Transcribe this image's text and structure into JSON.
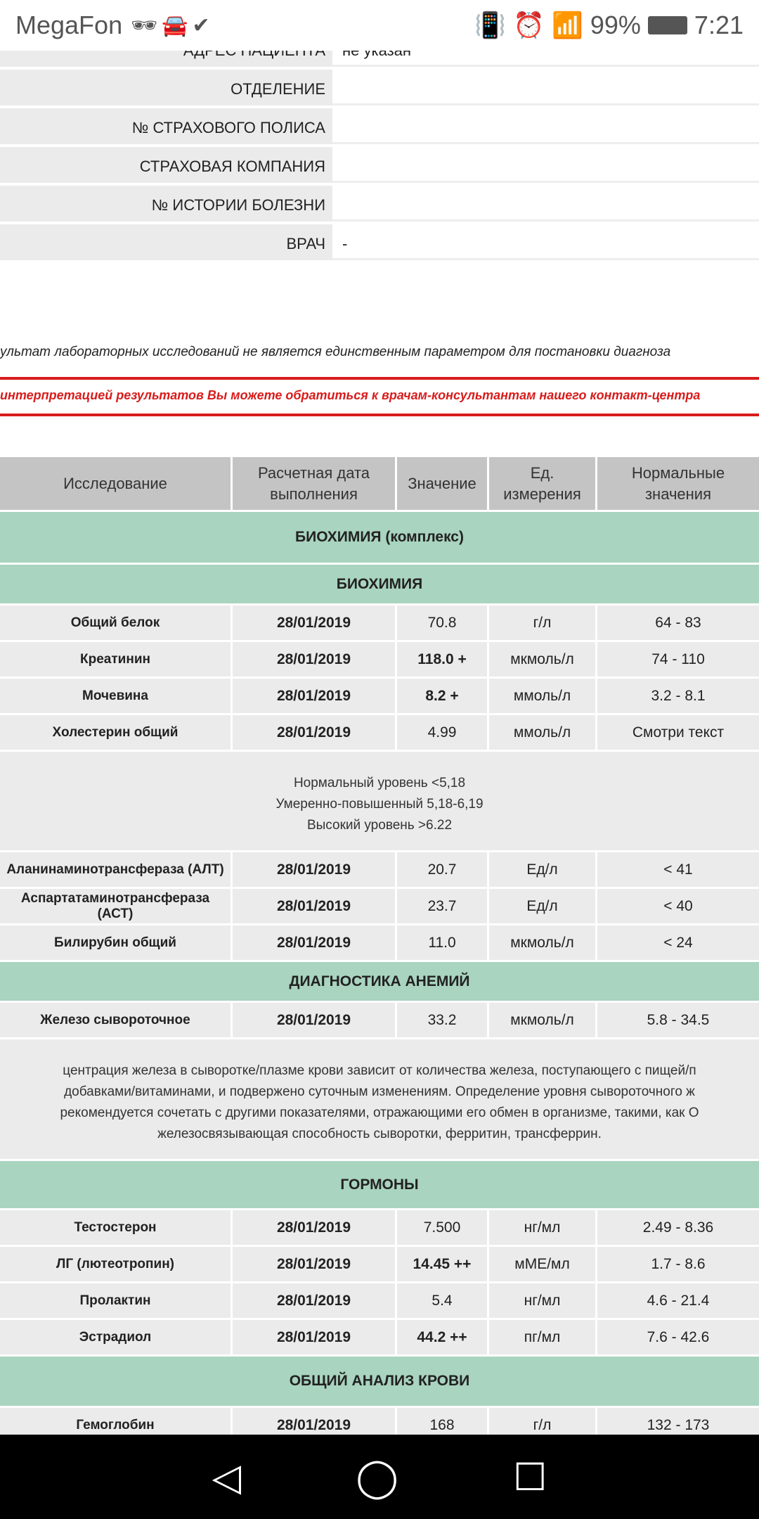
{
  "status_bar": {
    "carrier": "MegaFon",
    "left_icons": [
      "incognito-icon",
      "car-icon",
      "download-done-icon"
    ],
    "right_icons": [
      "vibrate-icon",
      "alarm-icon",
      "wifi-icon",
      "signal-icon"
    ],
    "battery": "99%",
    "time": "7:21"
  },
  "patient_info": [
    {
      "label": "АДРЕС ПАЦИЕНТА",
      "value": "не указан"
    },
    {
      "label": "ОТДЕЛЕНИЕ",
      "value": ""
    },
    {
      "label": "№ СТРАХОВОГО ПОЛИСА",
      "value": ""
    },
    {
      "label": "СТРАХОВАЯ КОМПАНИЯ",
      "value": ""
    },
    {
      "label": "№ ИСТОРИИ БОЛЕЗНИ",
      "value": ""
    },
    {
      "label": "ВРАЧ",
      "value": "-"
    }
  ],
  "disclaimer": "ультат лабораторных исследований не является единственным параметром для постановки диагноза",
  "contact_notice": "интерпретацией результатов Вы можете обратиться к врачам-консультантам нашего контакт-центра",
  "colors": {
    "header": "#c4c4c4",
    "section": "#a9d4bf",
    "row": "#ebebeb",
    "accent_red": "#d81c1c"
  },
  "table": {
    "headers": [
      "Исследование",
      "Расчетная дата выполнения",
      "Значение",
      "Ед. измерения",
      "Нормальные значения"
    ],
    "sections": {
      "biochem_complex": "БИОХИМИЯ (комплекс)",
      "biochem": "БИОХИМИЯ",
      "anemia": "ДИАГНОСТИКА АНЕМИЙ",
      "hormones": "ГОРМОНЫ",
      "cbc": "ОБЩИЙ АНАЛИЗ КРОВИ"
    },
    "biochem_rows": [
      {
        "name": "Общий белок",
        "date": "28/01/2019",
        "value": "70.8",
        "unit": "г/л",
        "norm": "64 - 83",
        "flag": false
      },
      {
        "name": "Креатинин",
        "date": "28/01/2019",
        "value": "118.0 +",
        "unit": "мкмоль/л",
        "norm": "74 - 110",
        "flag": true
      },
      {
        "name": "Мочевина",
        "date": "28/01/2019",
        "value": "8.2 +",
        "unit": "ммоль/л",
        "norm": "3.2 - 8.1",
        "flag": true
      },
      {
        "name": "Холестерин общий",
        "date": "28/01/2019",
        "value": "4.99",
        "unit": "ммоль/л",
        "norm": "Смотри текст",
        "flag": false
      }
    ],
    "cholesterol_note": [
      "Нормальный уровень <5,18",
      "Умеренно-повышенный 5,18-6,19",
      "Высокий уровень >6.22"
    ],
    "biochem_rows2": [
      {
        "name": "Аланинаминотрансфераза (АЛТ)",
        "date": "28/01/2019",
        "value": "20.7",
        "unit": "Ед/л",
        "norm": "< 41",
        "flag": false
      },
      {
        "name": "Аспартатаминотрансфераза (АСТ)",
        "date": "28/01/2019",
        "value": "23.7",
        "unit": "Ед/л",
        "norm": "< 40",
        "flag": false
      },
      {
        "name": "Билирубин общий",
        "date": "28/01/2019",
        "value": "11.0",
        "unit": "мкмоль/л",
        "norm": "< 24",
        "flag": false
      }
    ],
    "anemia_rows": [
      {
        "name": "Железо сывороточное",
        "date": "28/01/2019",
        "value": "33.2",
        "unit": "мкмоль/л",
        "norm": "5.8 - 34.5",
        "flag": false
      }
    ],
    "iron_note": [
      "центрация железа в сыворотке/плазме крови зависит от количества железа, поступающего с пищей/п",
      "добавками/витаминами, и подвержено суточным изменениям. Определение уровня сывороточного ж",
      "рекомендуется сочетать с другими показателями, отражающими его обмен в организме, такими, как О",
      "железосвязывающая способность сыворотки, ферритин, трансферрин."
    ],
    "hormone_rows": [
      {
        "name": "Тестостерон",
        "date": "28/01/2019",
        "value": "7.500",
        "unit": "нг/мл",
        "norm": "2.49 - 8.36",
        "flag": false
      },
      {
        "name": "ЛГ (лютеотропин)",
        "date": "28/01/2019",
        "value": "14.45 ++",
        "unit": "мМЕ/мл",
        "norm": "1.7 - 8.6",
        "flag": true
      },
      {
        "name": "Пролактин",
        "date": "28/01/2019",
        "value": "5.4",
        "unit": "нг/мл",
        "norm": "4.6 - 21.4",
        "flag": false
      },
      {
        "name": "Эстрадиол",
        "date": "28/01/2019",
        "value": "44.2 ++",
        "unit": "пг/мл",
        "norm": "7.6 - 42.6",
        "flag": true
      }
    ],
    "cbc_rows": [
      {
        "name": "Гемоглобин",
        "date": "28/01/2019",
        "value": "168",
        "unit": "г/л",
        "norm": "132 - 173",
        "flag": false
      }
    ]
  },
  "nav_bar": {
    "buttons": [
      "back-icon",
      "home-icon",
      "recents-icon"
    ]
  }
}
